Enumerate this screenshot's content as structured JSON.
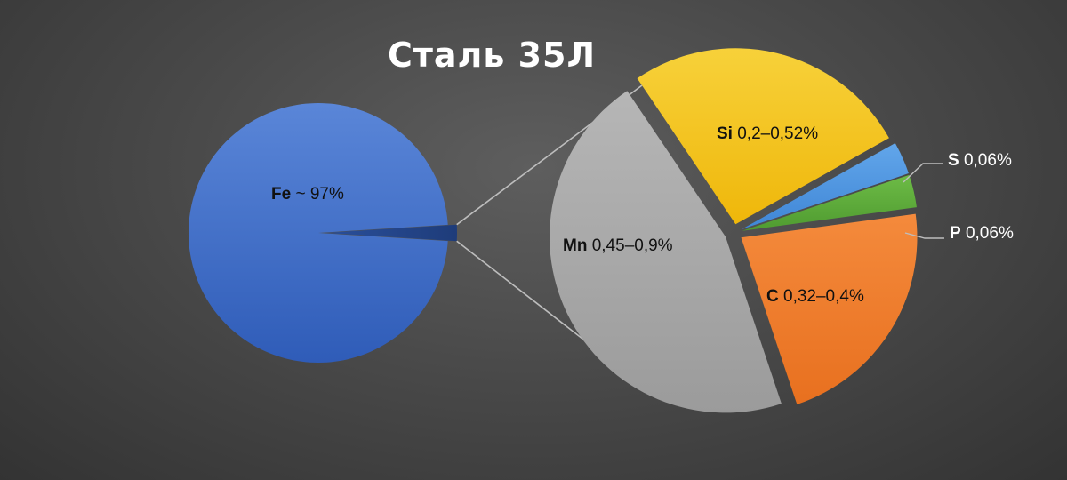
{
  "title": "Сталь 35Л",
  "chart_data": {
    "type": "pie",
    "variant": "pie-of-pie",
    "title": "Сталь 35Л",
    "main": {
      "element": "Fe",
      "value_label": "~ 97%",
      "share": 0.98,
      "color": "#3f6ec9"
    },
    "secondary": [
      {
        "element": "Si",
        "value_label": "0,2–0,52%",
        "share": 0.263,
        "color": "#f5c019",
        "text": "dark"
      },
      {
        "element": "S",
        "value_label": "0,06%",
        "share": 0.03,
        "color": "#4f97e0",
        "text": "light"
      },
      {
        "element": "P",
        "value_label": "0,06%",
        "share": 0.03,
        "color": "#5fae3c",
        "text": "light"
      },
      {
        "element": "C",
        "value_label": "0,32–0,4%",
        "share": 0.22,
        "color": "#ee7b2e",
        "text": "dark"
      },
      {
        "element": "Mn",
        "value_label": "0,45–0,9%",
        "share": 0.457,
        "color": "#a8a8a8",
        "text": "dark"
      }
    ],
    "connector_color": "#bdbdbd",
    "legend": "none"
  }
}
